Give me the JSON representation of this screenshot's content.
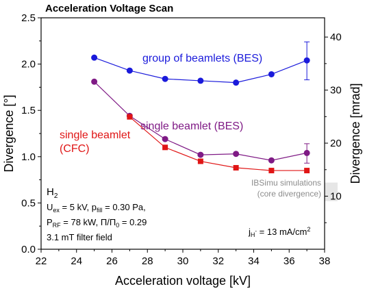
{
  "chart_data": {
    "type": "line",
    "title": "Acceleration Voltage Scan",
    "xlabel": "Acceleration voltage [kV]",
    "ylabel": "Divergence [°]",
    "y2label": "Divergence [mrad]",
    "xlim": [
      22,
      38
    ],
    "ylim": [
      0.0,
      2.5
    ],
    "y2lim": [
      0,
      43.63
    ],
    "xticks": [
      "22",
      "24",
      "26",
      "28",
      "30",
      "32",
      "34",
      "36",
      "38"
    ],
    "yticks": [
      "0.0",
      "0.5",
      "1.0",
      "1.5",
      "2.0",
      "2.5"
    ],
    "y2ticks": [
      "10",
      "20",
      "30",
      "40"
    ],
    "series": [
      {
        "name": "group of beamlets (BES)",
        "color": "#1a1adb",
        "marker": "circle",
        "x": [
          25,
          27,
          29,
          31,
          33,
          35,
          37
        ],
        "values": [
          2.07,
          1.93,
          1.84,
          1.82,
          1.8,
          1.89,
          2.04
        ],
        "error_bar": {
          "x": 37,
          "low": 1.83,
          "high": 2.24
        }
      },
      {
        "name": "single beamlet (BES)",
        "color": "#7f1a85",
        "marker": "circle",
        "x": [
          25,
          27,
          29,
          31,
          33,
          35,
          37
        ],
        "values": [
          1.81,
          1.44,
          1.19,
          1.02,
          1.03,
          0.96,
          1.04
        ],
        "error_bar": {
          "x": 37,
          "low": 0.93,
          "high": 1.14
        }
      },
      {
        "name": "single beamlet\n(CFC)",
        "color": "#e01515",
        "marker": "square",
        "x": [
          27,
          29,
          31,
          33,
          35,
          37
        ],
        "values": [
          1.43,
          1.1,
          0.95,
          0.88,
          0.85,
          0.85
        ]
      }
    ],
    "simulation_band": {
      "y_low": 0.52,
      "y_high": 0.72,
      "color": "#e6e6e6"
    },
    "annotations": {
      "params_line1": "H₂",
      "params_line2": "U_ex = 5 kV, p_fill = 0.30 Pa,",
      "params_line3": "P_RF = 78 kW, Π/Π₀ = 0.29",
      "params_line4": "3.1 mT filter field",
      "current_density": "j_H⁻ = 13 mA/cm²",
      "sim_label_line1": "IBSimu simulations",
      "sim_label_line2": "(core divergence)"
    }
  }
}
